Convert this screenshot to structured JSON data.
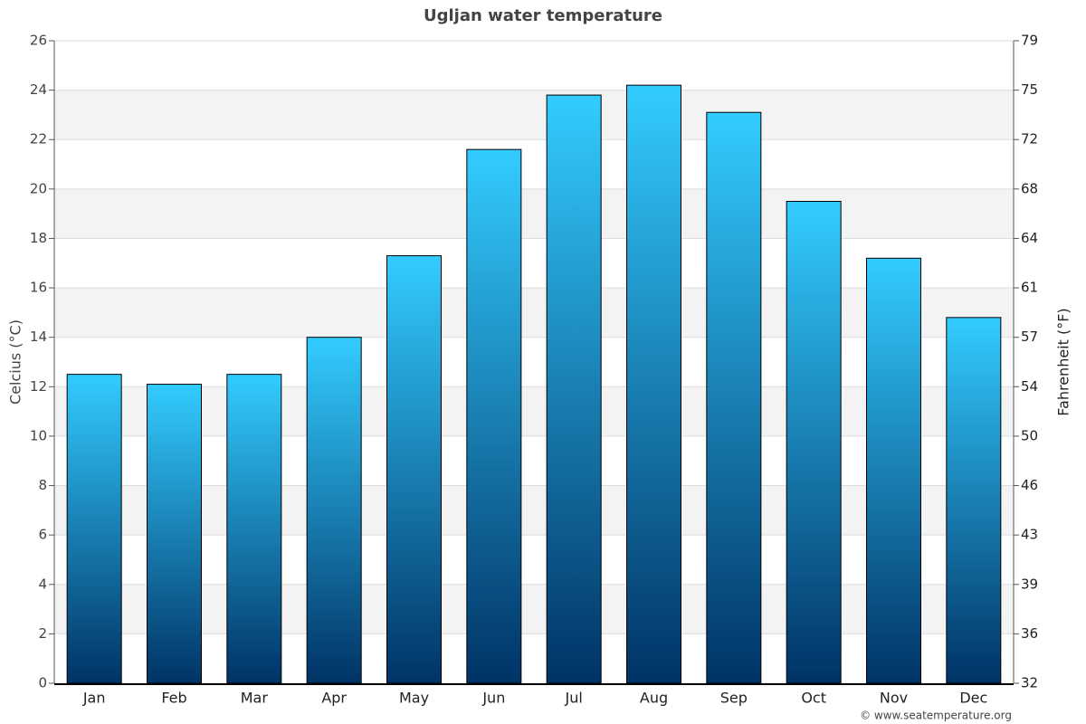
{
  "chart_data": {
    "type": "bar",
    "title": "Ugljan water temperature",
    "y_label": "Celcius (°C)",
    "y2_label": "Fahrenheit (°F)",
    "credit": "© www.seatemperature.org",
    "categories": [
      "Jan",
      "Feb",
      "Mar",
      "Apr",
      "May",
      "Jun",
      "Jul",
      "Aug",
      "Sep",
      "Oct",
      "Nov",
      "Dec"
    ],
    "values": [
      12.5,
      12.1,
      12.5,
      14.0,
      17.3,
      21.6,
      23.8,
      24.2,
      23.1,
      19.5,
      17.2,
      14.8
    ],
    "color": [
      "#33ccff",
      "#003366"
    ],
    "ylim": [
      0,
      26
    ],
    "yticks": [
      0,
      2,
      4,
      6,
      8,
      10,
      12,
      14,
      16,
      18,
      20,
      22,
      24,
      26
    ],
    "y2lim": [
      32,
      78.8
    ],
    "y2ticks": [
      32,
      {
        "value": 35.6,
        "label": "36"
      },
      {
        "value": 39.2,
        "label": "39"
      },
      {
        "value": 42.8,
        "label": "43"
      },
      {
        "value": 46.4,
        "label": "46"
      },
      50,
      {
        "value": 53.6,
        "label": "54"
      },
      {
        "value": 57.2,
        "label": "57"
      },
      {
        "value": 60.8,
        "label": "61"
      },
      {
        "value": 64.4,
        "label": "64"
      },
      68,
      {
        "value": 71.6,
        "label": "72"
      },
      {
        "value": 75.2,
        "label": "75"
      },
      {
        "value": 78.8,
        "label": "79"
      }
    ],
    "grid": true,
    "banded": true
  }
}
